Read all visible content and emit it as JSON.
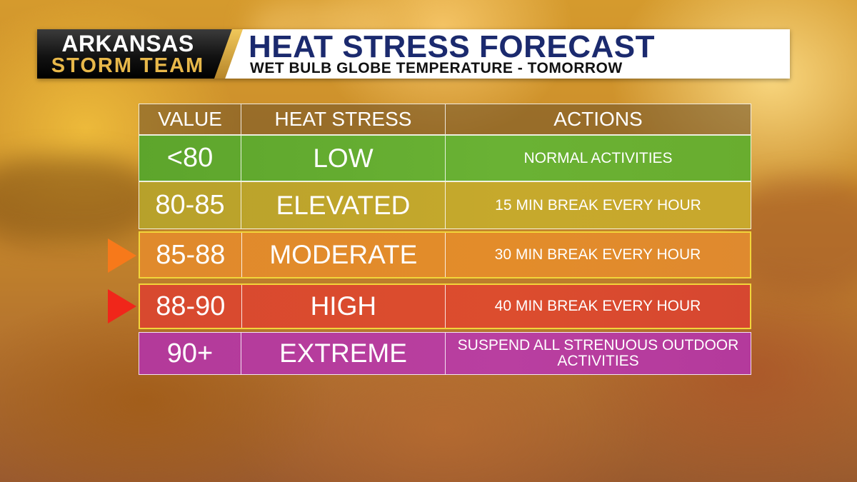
{
  "header": {
    "logo_line1": "ARKANSAS",
    "logo_line2": "STORM TEAM",
    "title": "HEAT STRESS FORECAST",
    "subtitle": "WET BULB GLOBE TEMPERATURE - TOMORROW"
  },
  "table": {
    "columns": [
      "VALUE",
      "HEAT STRESS",
      "ACTIONS"
    ],
    "rows": [
      {
        "value": "<80",
        "level": "LOW",
        "action": "NORMAL ACTIVITIES",
        "color": "#66ad30"
      },
      {
        "value": "80-85",
        "level": "ELEVATED",
        "action": "15 MIN BREAK EVERY HOUR",
        "color": "#c4a82c"
      },
      {
        "value": "85-88",
        "level": "MODERATE",
        "action": "30 MIN BREAK EVERY HOUR",
        "color": "#e28b2c"
      },
      {
        "value": "88-90",
        "level": "HIGH",
        "action": "40 MIN BREAK EVERY HOUR",
        "color": "#da4a2f"
      },
      {
        "value": "90+",
        "level": "EXTREME",
        "action": "SUSPEND ALL STRENUOUS OUTDOOR ACTIVITIES",
        "color": "#b73c9e"
      }
    ]
  },
  "markers": {
    "moderate_arrow_color": "#f7791a",
    "high_arrow_color": "#f0261a",
    "highlight_border_color": "#f2d53a"
  }
}
